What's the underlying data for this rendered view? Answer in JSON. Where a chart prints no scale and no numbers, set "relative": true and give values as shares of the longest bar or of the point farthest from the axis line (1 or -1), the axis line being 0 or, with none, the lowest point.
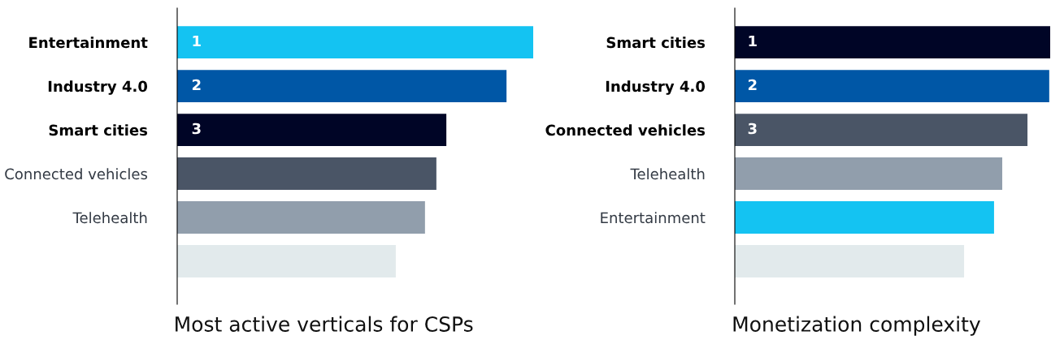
{
  "chart_data": [
    {
      "type": "bar",
      "orientation": "horizontal",
      "relative": true,
      "xlabel": "Most active verticals for CSPs",
      "categories": [
        "Entertainment",
        "Industry 4.0",
        "Smart cities",
        "Connected vehicles",
        "Telehealth",
        null
      ],
      "values": [
        1,
        0.925,
        0.756,
        0.728,
        0.696,
        0.614
      ],
      "colors": [
        "#14c3f2",
        "#0057a6",
        "#000526",
        "#4a5566",
        "#919eac",
        "#e2eaec"
      ],
      "annotations": [
        {
          "text": "1",
          "y": "Entertainment"
        },
        {
          "text": "2",
          "y": "Industry 4.0"
        },
        {
          "text": "3",
          "y": "Smart cities"
        }
      ]
    },
    {
      "type": "bar",
      "orientation": "horizontal",
      "relative": true,
      "xlabel": "Monetization complexity",
      "categories": [
        "Smart cities",
        "Industry 4.0",
        "Connected vehicles",
        "Telehealth",
        "Entertainment",
        null
      ],
      "values": [
        1,
        0.997,
        0.928,
        0.848,
        0.822,
        0.727
      ],
      "colors": [
        "#000526",
        "#0057a6",
        "#4a5566",
        "#919eac",
        "#14c3f2",
        "#e2eaec"
      ],
      "annotations": [
        {
          "text": "1",
          "y": "Smart cities"
        },
        {
          "text": "2",
          "y": "Industry 4.0"
        },
        {
          "text": "3",
          "y": "Connected vehicles"
        }
      ]
    }
  ]
}
